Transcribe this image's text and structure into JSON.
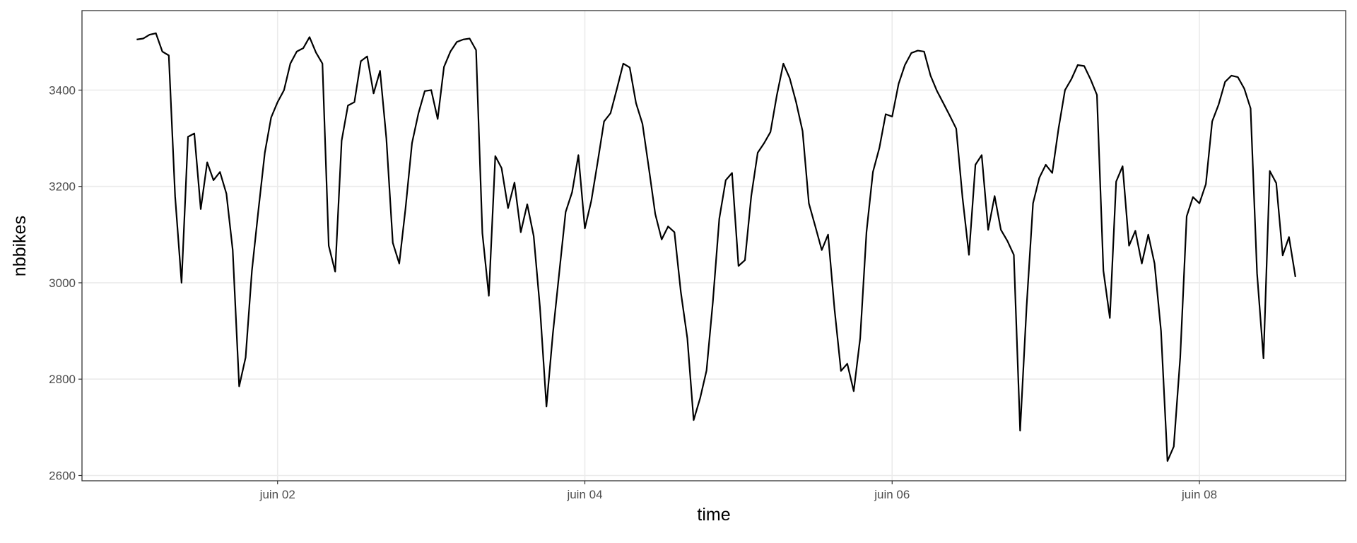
{
  "chart_data": {
    "type": "line",
    "x_label": "time",
    "y_label": "nbbikes",
    "xlim": [
      0.727,
      8.952
    ],
    "ylim": [
      2589,
      3565
    ],
    "xticks": [
      {
        "value": 2,
        "label": "juin 02"
      },
      {
        "value": 4,
        "label": "juin 04"
      },
      {
        "value": 6,
        "label": "juin 06"
      },
      {
        "value": 8,
        "label": "juin 08"
      }
    ],
    "yticks": [
      2600,
      2800,
      3000,
      3200,
      3400
    ],
    "grid": true,
    "color": "#000000",
    "x": [
      1.083,
      1.125,
      1.167,
      1.208,
      1.25,
      1.292,
      1.333,
      1.375,
      1.417,
      1.458,
      1.5,
      1.542,
      1.583,
      1.625,
      1.667,
      1.708,
      1.75,
      1.792,
      1.833,
      1.875,
      1.917,
      1.958,
      2,
      2.042,
      2.083,
      2.125,
      2.167,
      2.208,
      2.25,
      2.292,
      2.333,
      2.375,
      2.417,
      2.458,
      2.5,
      2.542,
      2.583,
      2.625,
      2.667,
      2.708,
      2.75,
      2.792,
      2.833,
      2.875,
      2.917,
      2.958,
      3,
      3.042,
      3.083,
      3.125,
      3.167,
      3.208,
      3.25,
      3.292,
      3.333,
      3.375,
      3.417,
      3.458,
      3.5,
      3.542,
      3.583,
      3.625,
      3.667,
      3.708,
      3.75,
      3.792,
      3.833,
      3.875,
      3.917,
      3.958,
      4,
      4.042,
      4.083,
      4.125,
      4.167,
      4.208,
      4.25,
      4.292,
      4.333,
      4.375,
      4.417,
      4.458,
      4.5,
      4.542,
      4.583,
      4.625,
      4.667,
      4.708,
      4.75,
      4.792,
      4.833,
      4.875,
      4.917,
      4.958,
      5,
      5.042,
      5.083,
      5.125,
      5.167,
      5.208,
      5.25,
      5.292,
      5.333,
      5.375,
      5.417,
      5.458,
      5.5,
      5.542,
      5.583,
      5.625,
      5.667,
      5.708,
      5.75,
      5.792,
      5.833,
      5.875,
      5.917,
      5.958,
      6,
      6.042,
      6.083,
      6.125,
      6.167,
      6.208,
      6.25,
      6.292,
      6.333,
      6.375,
      6.417,
      6.458,
      6.5,
      6.542,
      6.583,
      6.625,
      6.667,
      6.708,
      6.75,
      6.792,
      6.833,
      6.875,
      6.917,
      6.958,
      7,
      7.042,
      7.083,
      7.125,
      7.167,
      7.208,
      7.25,
      7.292,
      7.333,
      7.375,
      7.417,
      7.458,
      7.5,
      7.542,
      7.583,
      7.625,
      7.667,
      7.708,
      7.75,
      7.792,
      7.833,
      7.875,
      7.917,
      7.958,
      8,
      8.042,
      8.083,
      8.125,
      8.167,
      8.208,
      8.25,
      8.292,
      8.333,
      8.375,
      8.417,
      8.458,
      8.5,
      8.542,
      8.583,
      8.625
    ],
    "values": [
      3505,
      3507,
      3515,
      3518,
      3480,
      3472,
      3180,
      3000,
      3303,
      3310,
      3153,
      3250,
      3213,
      3230,
      3185,
      3068,
      2785,
      2845,
      3025,
      3150,
      3270,
      3343,
      3375,
      3400,
      3455,
      3480,
      3487,
      3510,
      3478,
      3455,
      3077,
      3023,
      3295,
      3368,
      3375,
      3460,
      3470,
      3393,
      3440,
      3300,
      3083,
      3040,
      3155,
      3290,
      3352,
      3398,
      3400,
      3340,
      3448,
      3480,
      3500,
      3505,
      3507,
      3483,
      3103,
      2973,
      3263,
      3238,
      3155,
      3208,
      3105,
      3163,
      3097,
      2948,
      2743,
      2895,
      3020,
      3147,
      3188,
      3265,
      3113,
      3170,
      3250,
      3335,
      3352,
      3402,
      3455,
      3447,
      3373,
      3330,
      3237,
      3143,
      3090,
      3117,
      3105,
      2980,
      2885,
      2715,
      2760,
      2818,
      2960,
      3133,
      3213,
      3228,
      3035,
      3047,
      3180,
      3270,
      3290,
      3313,
      3390,
      3455,
      3425,
      3375,
      3315,
      3165,
      3117,
      3068,
      3100,
      2945,
      2817,
      2832,
      2775,
      2885,
      3105,
      3230,
      3280,
      3350,
      3345,
      3413,
      3452,
      3477,
      3482,
      3480,
      3430,
      3398,
      3373,
      3347,
      3320,
      3177,
      3058,
      3245,
      3265,
      3110,
      3180,
      3110,
      3087,
      3058,
      2693,
      2950,
      3165,
      3218,
      3245,
      3228,
      3320,
      3400,
      3423,
      3452,
      3450,
      3422,
      3390,
      3025,
      2927,
      3210,
      3242,
      3077,
      3108,
      3040,
      3100,
      3040,
      2900,
      2630,
      2660,
      2845,
      3138,
      3178,
      3165,
      3205,
      3335,
      3370,
      3417,
      3430,
      3427,
      3403,
      3362,
      3020,
      2843,
      3232,
      3207,
      3057,
      3095,
      3012
    ]
  }
}
